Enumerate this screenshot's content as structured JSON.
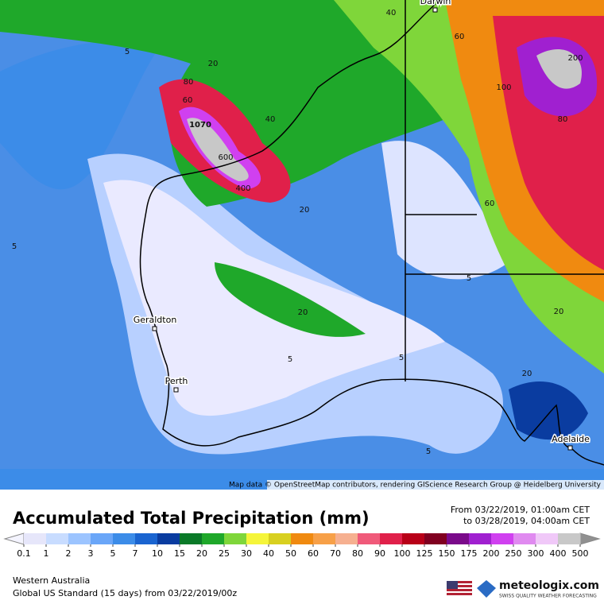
{
  "map": {
    "attribution": "Map data © OpenStreetMap contributors, rendering GIScience Research Group @ Heidelberg University",
    "cities": [
      "Darwin",
      "Geraldton",
      "Perth",
      "Adelaide"
    ],
    "contour_labels": [
      1070,
      600,
      400,
      200,
      100,
      80,
      60,
      40,
      20,
      20,
      5,
      5,
      20,
      5,
      5,
      20,
      40,
      60,
      80,
      60,
      20,
      5,
      5
    ]
  },
  "footer": {
    "title": "Accumulated Total Precipitation (mm)",
    "period_from": "From 03/22/2019, 01:00am CET",
    "period_to": "to 03/28/2019, 04:00am CET",
    "region": "Western Australia",
    "model": "Global US Standard (15 days) from 03/22/2019/00z",
    "brand": "meteologix.com",
    "tagline": "SWISS QUALITY WEATHER FORECASTING"
  },
  "colorbar": {
    "labels": [
      0.1,
      1,
      2,
      3,
      5,
      7,
      10,
      15,
      20,
      25,
      30,
      40,
      50,
      60,
      70,
      80,
      90,
      100,
      125,
      150,
      175,
      200,
      250,
      300,
      400,
      500
    ],
    "colors": [
      "#e6e6fa",
      "#c8dcff",
      "#9cc4ff",
      "#6aa6f8",
      "#3c8ce8",
      "#1a64d0",
      "#0a3ca0",
      "#0a7a28",
      "#1fa82a",
      "#7fd63a",
      "#f5f53a",
      "#d8d020",
      "#f08a10",
      "#f7a048",
      "#f6b090",
      "#f05a7a",
      "#e0204a",
      "#b80018",
      "#800020",
      "#7a0a8a",
      "#a020d0",
      "#d040f0",
      "#e08af0",
      "#f0c8f8",
      "#c8c8c8"
    ],
    "under_color": "#f4f4ff",
    "over_color": "#909090"
  }
}
